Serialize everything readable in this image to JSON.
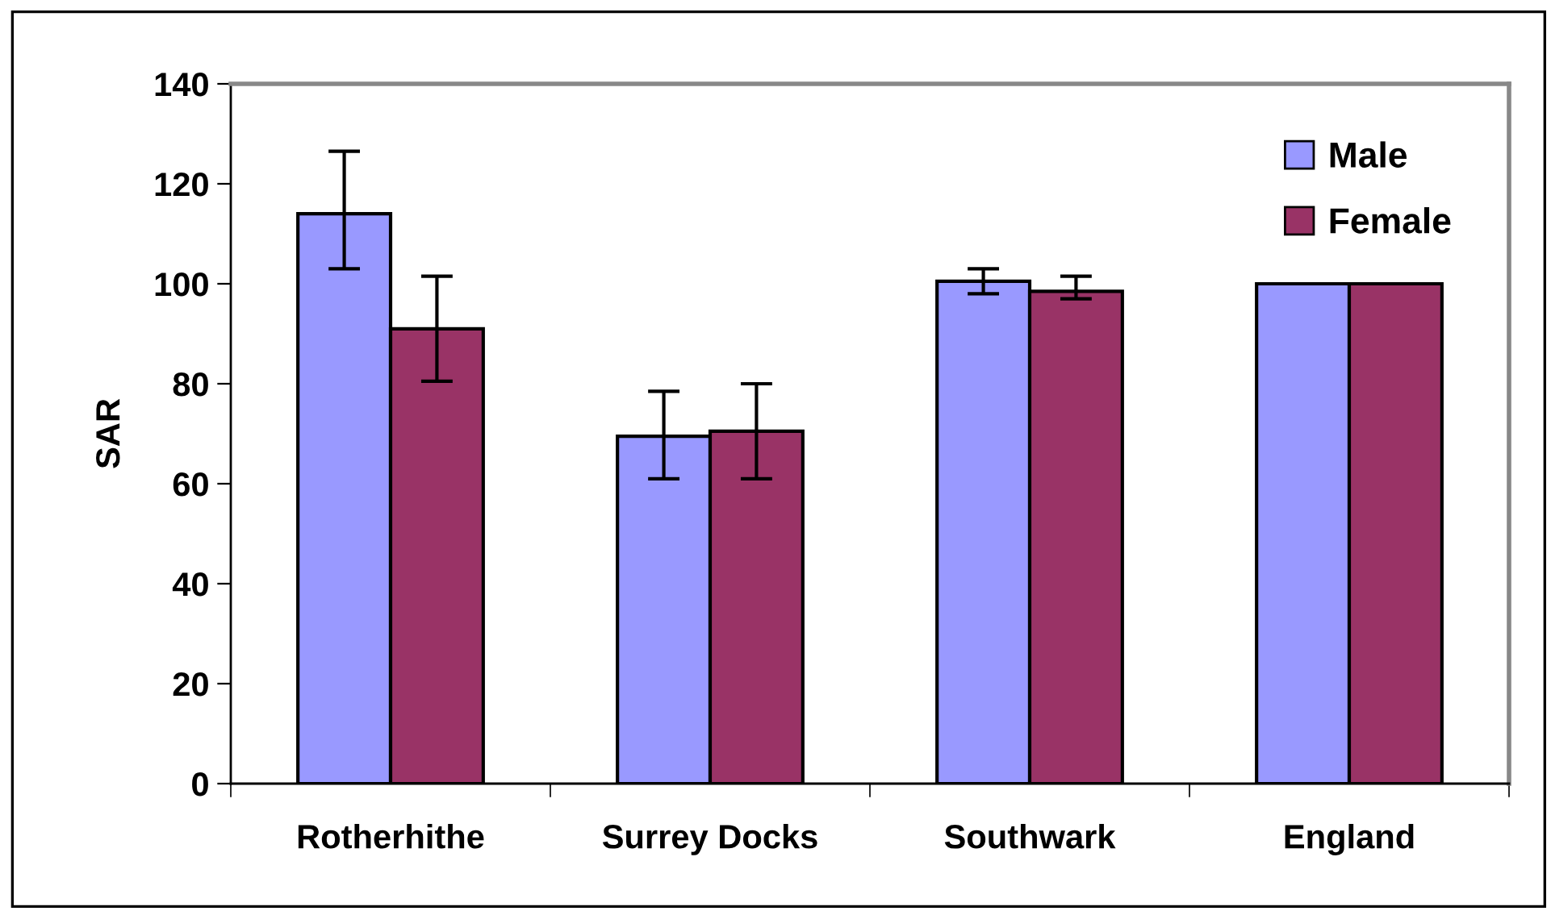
{
  "chart_data": {
    "type": "bar",
    "ylabel": "SAR",
    "categories": [
      "Rotherhithe",
      "Surrey Docks",
      "Southwark",
      "England"
    ],
    "series": [
      {
        "name": "Male",
        "color": "#9999ff",
        "values": [
          114,
          69.5,
          100.5,
          100
        ],
        "errors": [
          [
            103,
            126.5
          ],
          [
            61,
            78.5
          ],
          [
            98,
            103
          ],
          null
        ]
      },
      {
        "name": "Female",
        "color": "#993366",
        "values": [
          91,
          70.5,
          98.5,
          100
        ],
        "errors": [
          [
            80.5,
            101.5
          ],
          [
            61,
            80
          ],
          [
            97,
            101.5
          ],
          null
        ]
      }
    ],
    "ylim": [
      0,
      140
    ],
    "yticks": [
      0,
      20,
      40,
      60,
      80,
      100,
      120,
      140
    ],
    "grid": false,
    "legend": "top right"
  }
}
